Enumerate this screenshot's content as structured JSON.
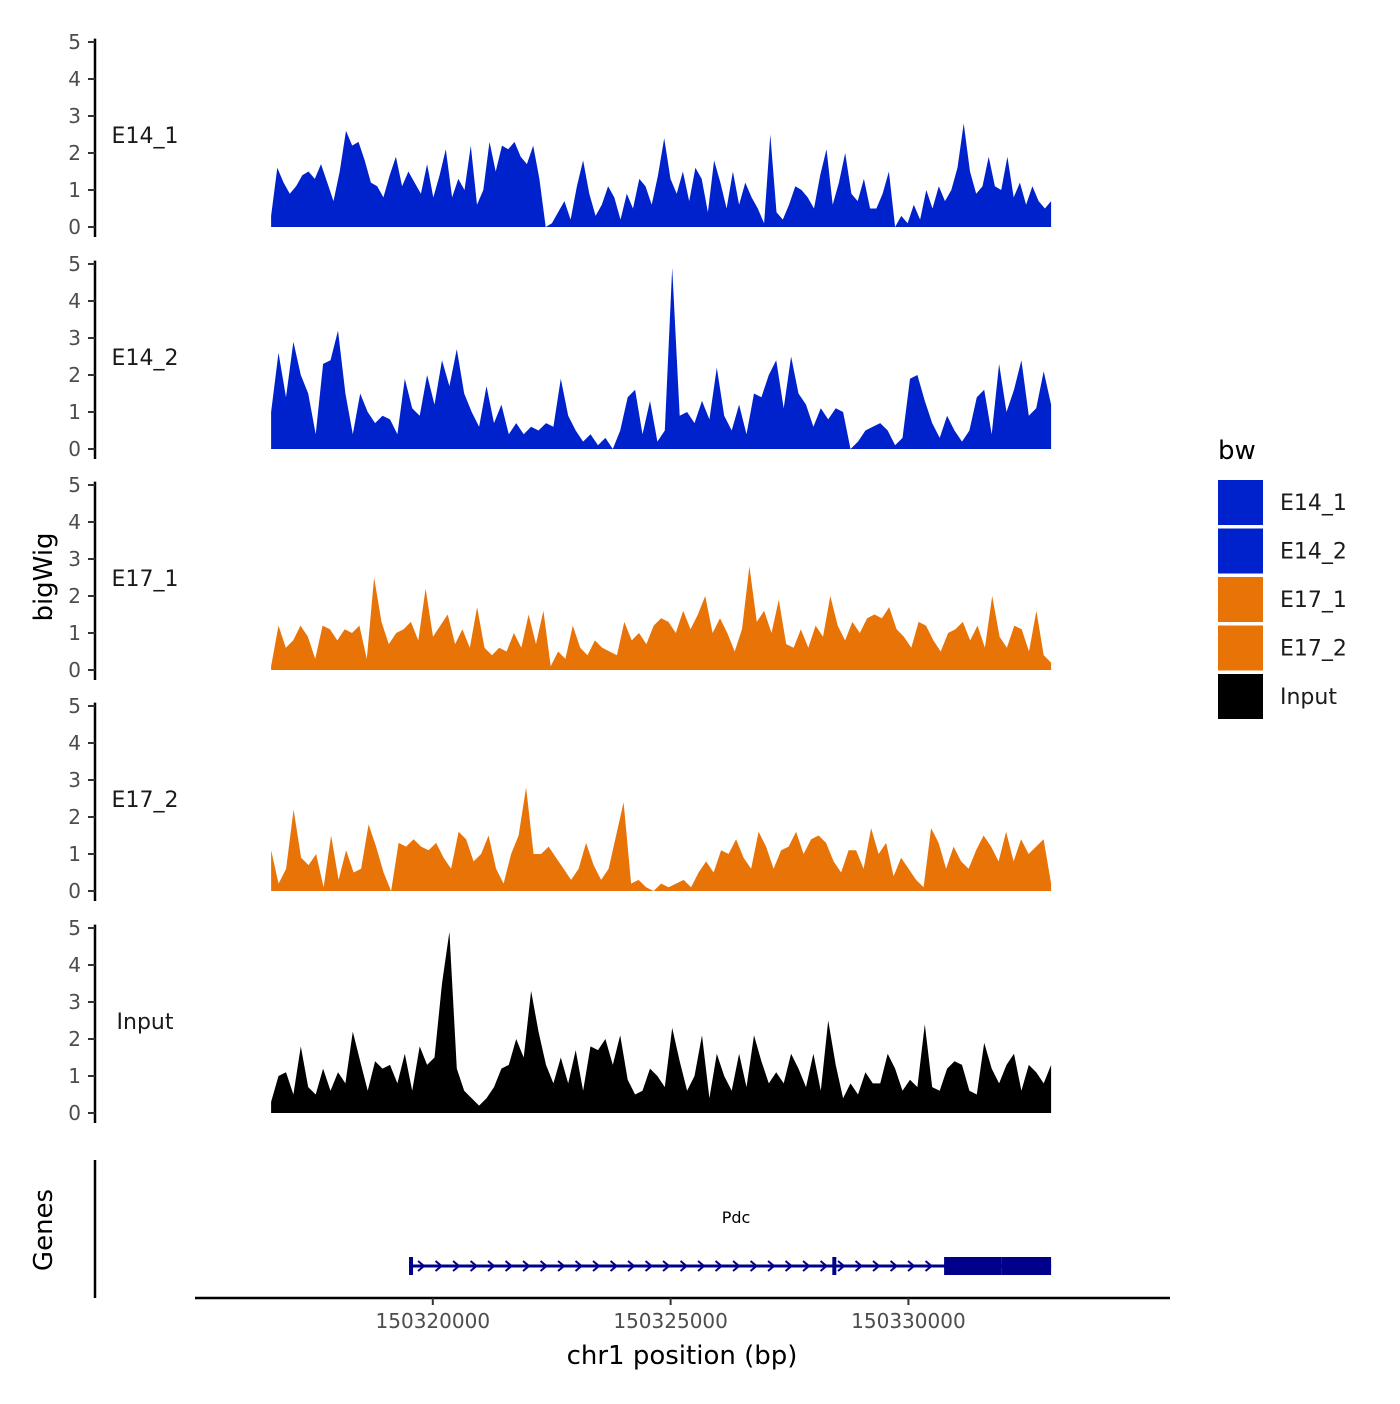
{
  "chart_data": {
    "type": "area",
    "title": "",
    "y_axis_title": "bigWig",
    "genes_axis_title": "Genes",
    "x_axis_title": "chr1 position (bp)",
    "x_range": [
      150315000,
      150335500
    ],
    "data_x_range": [
      150316600,
      150333000
    ],
    "x_ticks": [
      {
        "value": 150320000,
        "label": "150320000"
      },
      {
        "value": 150325000,
        "label": "150325000"
      },
      {
        "value": 150330000,
        "label": "150330000"
      }
    ],
    "ylim": [
      0,
      5.2
    ],
    "y_ticks": [
      {
        "value": 0,
        "label": "0"
      },
      {
        "value": 1,
        "label": "1"
      },
      {
        "value": 2,
        "label": "2"
      },
      {
        "value": 3,
        "label": "3"
      },
      {
        "value": 4,
        "label": "4"
      },
      {
        "value": 5,
        "label": "5"
      }
    ],
    "tracks": [
      {
        "name": "E14_1",
        "color": "#0022CC",
        "values": [
          0.3,
          1.6,
          1.2,
          0.9,
          1.1,
          1.4,
          1.5,
          1.3,
          1.7,
          1.2,
          0.7,
          1.5,
          2.6,
          2.2,
          2.3,
          1.8,
          1.2,
          1.1,
          0.8,
          1.4,
          1.9,
          1.1,
          1.5,
          1.2,
          0.9,
          1.7,
          0.8,
          1.4,
          2.1,
          0.8,
          1.3,
          1.0,
          2.2,
          0.6,
          1.0,
          2.3,
          1.5,
          2.2,
          2.1,
          2.3,
          1.9,
          1.7,
          2.2,
          1.3,
          0.0,
          0.1,
          0.4,
          0.7,
          0.2,
          1.1,
          1.8,
          0.9,
          0.3,
          0.6,
          1.1,
          0.8,
          0.2,
          0.9,
          0.5,
          1.3,
          1.1,
          0.6,
          1.4,
          2.4,
          1.3,
          0.9,
          1.5,
          0.7,
          1.6,
          1.3,
          0.4,
          1.8,
          1.2,
          0.5,
          1.5,
          0.6,
          1.2,
          0.8,
          0.5,
          0.1,
          2.5,
          0.4,
          0.2,
          0.6,
          1.1,
          1.0,
          0.8,
          0.5,
          1.4,
          2.1,
          0.6,
          1.2,
          2.0,
          0.9,
          0.7,
          1.3,
          0.5,
          0.5,
          0.9,
          1.5,
          0.0,
          0.3,
          0.1,
          0.6,
          0.2,
          1.0,
          0.5,
          1.1,
          0.7,
          1.0,
          1.6,
          2.8,
          1.5,
          0.9,
          1.1,
          1.9,
          1.1,
          1.0,
          1.9,
          0.8,
          1.2,
          0.6,
          1.1,
          0.7,
          0.5,
          0.7
        ]
      },
      {
        "name": "E14_2",
        "color": "#0022CC",
        "values": [
          1.0,
          2.6,
          1.4,
          2.9,
          2.0,
          1.5,
          0.4,
          2.3,
          2.4,
          3.2,
          1.5,
          0.4,
          1.5,
          1.0,
          0.7,
          0.9,
          0.8,
          0.4,
          1.9,
          1.1,
          0.9,
          2.0,
          1.2,
          2.4,
          1.7,
          2.7,
          1.5,
          1.0,
          0.6,
          1.7,
          0.7,
          1.2,
          0.4,
          0.7,
          0.4,
          0.6,
          0.5,
          0.7,
          0.6,
          1.9,
          0.9,
          0.5,
          0.2,
          0.4,
          0.1,
          0.3,
          0.0,
          0.5,
          1.4,
          1.6,
          0.4,
          1.3,
          0.2,
          0.5,
          4.9,
          0.9,
          1.0,
          0.7,
          1.3,
          0.8,
          2.2,
          0.9,
          0.5,
          1.2,
          0.4,
          1.5,
          1.4,
          2.0,
          2.4,
          1.1,
          2.5,
          1.5,
          1.2,
          0.6,
          1.1,
          0.8,
          1.1,
          1.0,
          0.0,
          0.2,
          0.5,
          0.6,
          0.7,
          0.5,
          0.1,
          0.3,
          1.9,
          2.0,
          1.3,
          0.7,
          0.3,
          0.9,
          0.5,
          0.2,
          0.5,
          1.4,
          1.6,
          0.4,
          2.3,
          1.0,
          1.6,
          2.4,
          0.9,
          1.1,
          2.1,
          1.2
        ]
      },
      {
        "name": "E17_1",
        "color": "#E87408",
        "values": [
          0.1,
          1.2,
          0.6,
          0.8,
          1.2,
          0.9,
          0.3,
          1.2,
          1.1,
          0.8,
          1.1,
          1.0,
          1.2,
          0.3,
          2.5,
          1.3,
          0.7,
          1.0,
          1.1,
          1.3,
          0.8,
          2.2,
          0.9,
          1.2,
          1.5,
          0.7,
          1.1,
          0.6,
          1.7,
          0.6,
          0.4,
          0.6,
          0.5,
          1.0,
          0.6,
          1.5,
          0.7,
          1.6,
          0.1,
          0.5,
          0.3,
          1.2,
          0.6,
          0.4,
          0.8,
          0.6,
          0.5,
          0.4,
          1.3,
          0.8,
          1.0,
          0.7,
          1.2,
          1.4,
          1.3,
          1.0,
          1.6,
          1.1,
          1.5,
          2.0,
          1.0,
          1.4,
          1.0,
          0.5,
          1.1,
          2.8,
          1.3,
          1.6,
          1.0,
          1.9,
          0.7,
          0.6,
          1.1,
          0.6,
          1.2,
          0.9,
          2.0,
          1.2,
          0.8,
          1.3,
          1.0,
          1.4,
          1.5,
          1.4,
          1.7,
          1.1,
          0.9,
          0.6,
          1.3,
          1.2,
          0.8,
          0.5,
          1.0,
          1.1,
          1.3,
          0.8,
          1.2,
          0.6,
          2.0,
          0.9,
          0.6,
          1.2,
          1.1,
          0.5,
          1.6,
          0.4,
          0.2
        ]
      },
      {
        "name": "E17_2",
        "color": "#E87408",
        "values": [
          1.1,
          0.2,
          0.6,
          2.2,
          0.9,
          0.7,
          1.0,
          0.1,
          1.5,
          0.3,
          1.1,
          0.5,
          0.6,
          1.8,
          1.2,
          0.5,
          0.0,
          1.3,
          1.2,
          1.4,
          1.2,
          1.1,
          1.3,
          0.9,
          0.6,
          1.6,
          1.4,
          0.8,
          1.0,
          1.5,
          0.6,
          0.2,
          1.0,
          1.5,
          2.8,
          1.0,
          1.0,
          1.2,
          0.9,
          0.6,
          0.3,
          0.6,
          1.3,
          0.7,
          0.3,
          0.6,
          1.5,
          2.4,
          0.2,
          0.3,
          0.1,
          0.0,
          0.2,
          0.1,
          0.2,
          0.3,
          0.1,
          0.5,
          0.8,
          0.5,
          1.1,
          1.0,
          1.4,
          0.9,
          0.6,
          1.6,
          1.2,
          0.6,
          1.1,
          1.2,
          1.6,
          1.0,
          1.4,
          1.5,
          1.3,
          0.8,
          0.5,
          1.1,
          1.1,
          0.6,
          1.7,
          1.0,
          1.3,
          0.4,
          0.9,
          0.6,
          0.3,
          0.1,
          1.7,
          1.3,
          0.6,
          1.2,
          0.8,
          0.6,
          1.1,
          1.5,
          1.2,
          0.8,
          1.6,
          0.8,
          1.4,
          1.0,
          1.2,
          1.4,
          0.2
        ]
      },
      {
        "name": "Input",
        "color": "#000000",
        "values": [
          0.3,
          1.0,
          1.1,
          0.5,
          1.8,
          0.7,
          0.5,
          1.2,
          0.6,
          1.1,
          0.8,
          2.2,
          1.4,
          0.6,
          1.4,
          1.2,
          1.3,
          0.8,
          1.6,
          0.6,
          1.8,
          1.3,
          1.5,
          3.5,
          4.9,
          1.2,
          0.6,
          0.4,
          0.2,
          0.4,
          0.7,
          1.2,
          1.3,
          2.0,
          1.5,
          3.3,
          2.2,
          1.3,
          0.8,
          1.5,
          0.8,
          1.7,
          0.6,
          1.8,
          1.7,
          2.0,
          1.3,
          2.1,
          0.9,
          0.5,
          0.6,
          1.2,
          1.0,
          0.7,
          2.3,
          1.4,
          0.6,
          1.0,
          2.1,
          0.4,
          1.6,
          1.0,
          0.6,
          1.6,
          0.7,
          2.1,
          1.4,
          0.8,
          1.1,
          0.8,
          1.6,
          1.2,
          0.7,
          1.6,
          0.6,
          2.5,
          1.3,
          0.4,
          0.8,
          0.5,
          1.1,
          0.8,
          0.8,
          1.6,
          1.2,
          0.6,
          0.9,
          0.7,
          2.4,
          0.7,
          0.6,
          1.2,
          1.4,
          1.3,
          0.6,
          0.5,
          1.9,
          1.2,
          0.8,
          1.3,
          1.6,
          0.6,
          1.3,
          1.1,
          0.8,
          1.3
        ]
      }
    ],
    "legend": {
      "title": "bw",
      "position": "right",
      "items": [
        {
          "label": "E14_1",
          "color": "#0022CC"
        },
        {
          "label": "E14_2",
          "color": "#0022CC"
        },
        {
          "label": "E17_1",
          "color": "#E87408"
        },
        {
          "label": "E17_2",
          "color": "#E87408"
        },
        {
          "label": "Input",
          "color": "#000000"
        }
      ]
    },
    "gene": {
      "name": "Pdc",
      "strand": "+",
      "color": "#00008B",
      "start": 150319500,
      "end": 150333000,
      "exons": [
        {
          "start": 150319500,
          "end": 150319560,
          "kind": "coding-mark"
        },
        {
          "start": 150328400,
          "end": 150328480,
          "kind": "coding-mark"
        },
        {
          "start": 150330750,
          "end": 150331950,
          "kind": "thick"
        },
        {
          "start": 150331950,
          "end": 150333000,
          "kind": "thick"
        }
      ]
    }
  }
}
